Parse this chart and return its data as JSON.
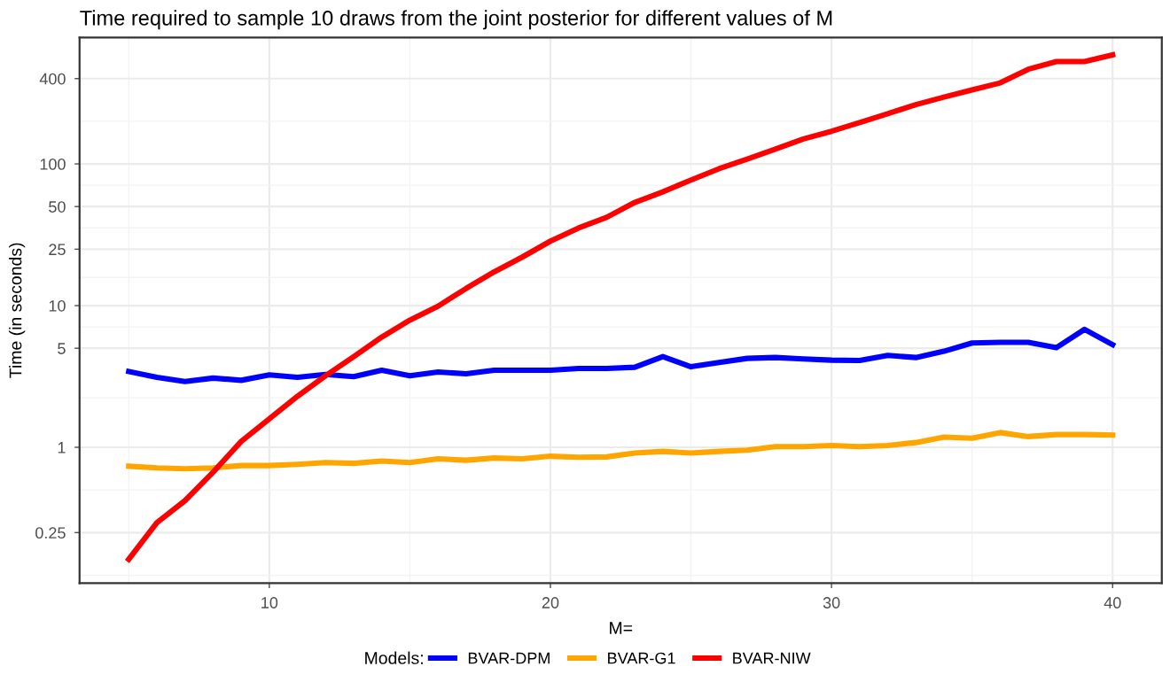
{
  "chart_data": {
    "type": "line",
    "title": "Time required to sample 10 draws from the joint posterior for different values of M",
    "xlabel": "M=",
    "ylabel": "Time (in seconds)",
    "legend_title": "Models:",
    "legend": "bottom",
    "grid": true,
    "log": "y",
    "line_style": "solid",
    "x": [
      5,
      6,
      7,
      8,
      9,
      10,
      11,
      12,
      13,
      14,
      15,
      16,
      17,
      18,
      19,
      20,
      21,
      22,
      23,
      24,
      25,
      26,
      27,
      28,
      29,
      30,
      31,
      32,
      33,
      34,
      35,
      36,
      37,
      38,
      39,
      40
    ],
    "xlim": [
      3.25,
      41.75
    ],
    "xticks": [
      10,
      20,
      30,
      40
    ],
    "ylim": [
      0.11,
      780
    ],
    "yticks": [
      0.25,
      1,
      5,
      10,
      25,
      50,
      100,
      400
    ],
    "series": [
      {
        "name": "BVAR-DPM",
        "color": "#0000ff",
        "values": [
          3.43,
          3.12,
          2.91,
          3.08,
          2.97,
          3.24,
          3.12,
          3.27,
          3.15,
          3.5,
          3.2,
          3.4,
          3.3,
          3.5,
          3.5,
          3.5,
          3.6,
          3.6,
          3.67,
          4.37,
          3.7,
          3.97,
          4.24,
          4.3,
          4.2,
          4.12,
          4.1,
          4.45,
          4.3,
          4.76,
          5.45,
          5.5,
          5.5,
          5.05,
          6.8,
          5.3
        ]
      },
      {
        "name": "BVAR-G1",
        "color": "#ffa500",
        "values": [
          0.736,
          0.715,
          0.705,
          0.715,
          0.743,
          0.743,
          0.758,
          0.78,
          0.77,
          0.8,
          0.78,
          0.83,
          0.81,
          0.84,
          0.83,
          0.865,
          0.85,
          0.855,
          0.91,
          0.935,
          0.91,
          0.935,
          0.955,
          1.01,
          1.01,
          1.03,
          1.01,
          1.03,
          1.08,
          1.18,
          1.16,
          1.27,
          1.19,
          1.23,
          1.23,
          1.22
        ]
      },
      {
        "name": "BVAR-NIW",
        "color": "#ff0000",
        "values": [
          0.162,
          0.294,
          0.42,
          0.667,
          1.1,
          1.59,
          2.29,
          3.2,
          4.36,
          6.0,
          7.9,
          9.9,
          13.2,
          17.3,
          22,
          28.5,
          35.3,
          42,
          53.5,
          63.5,
          77,
          92.5,
          108,
          127,
          150,
          170,
          196,
          226,
          262,
          296,
          333,
          373,
          466,
          528,
          528,
          588
        ]
      }
    ]
  }
}
